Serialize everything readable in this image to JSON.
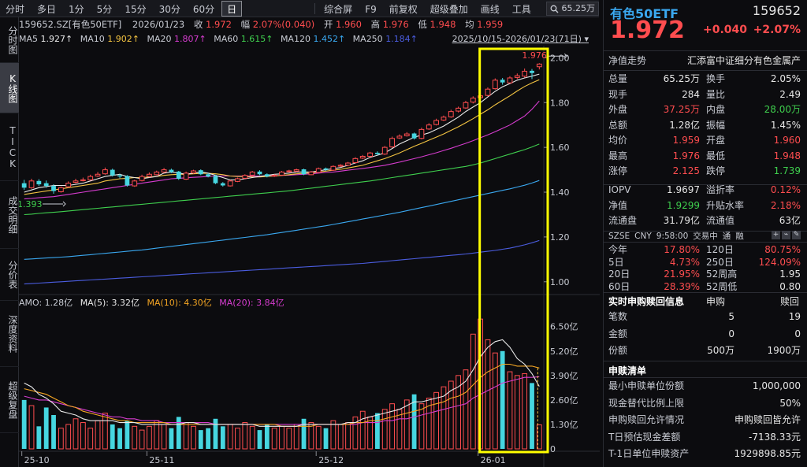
{
  "toolbar": {
    "tabs": [
      "分时",
      "多日",
      "1分",
      "5分",
      "15分",
      "30分",
      "60分",
      "日"
    ],
    "active_tab": "日",
    "tools": [
      "综合屏",
      "F9",
      "前复权",
      "超级叠加",
      "画线",
      "工具"
    ],
    "search_text": "65.25万"
  },
  "sidebar": {
    "items": [
      "分时图",
      "K线图",
      "TICK",
      "成交明细",
      "分价表",
      "深度资料",
      "超级复盘"
    ],
    "active": "K线图"
  },
  "info": {
    "code": "159652.SZ[有色50ETF]",
    "date": "2026/01/23",
    "close_label": "收",
    "close": "1.972",
    "change_label": "幅",
    "change": "2.07%(0.040)",
    "open_label": "开",
    "open": "1.960",
    "high_label": "高",
    "high": "1.976",
    "low_label": "低",
    "low": "1.948",
    "avg_label": "均",
    "avg": "1.959",
    "range": "2025/10/15-2026/01/23(71日)"
  },
  "ma": [
    {
      "name": "MA5",
      "value": "1.927↑",
      "color": "#e8e8e8"
    },
    {
      "name": "MA10",
      "value": "1.902↑",
      "color": "#f5c542"
    },
    {
      "name": "MA20",
      "value": "1.807↑",
      "color": "#d63ccf"
    },
    {
      "name": "MA60",
      "value": "1.615↑",
      "color": "#3fcf4e"
    },
    {
      "name": "MA120",
      "value": "1.452↑",
      "color": "#3aa8f0"
    },
    {
      "name": "MA250",
      "value": "1.184↑",
      "color": "#4b5de0"
    }
  ],
  "amo": {
    "label": "AMO: 1.28亿",
    "ma5": "MA(5): 3.32亿",
    "ma10": "MA(10): 4.30亿",
    "ma20": "MA(20): 3.84亿",
    "ma5_color": "#e8e8e8",
    "ma10_color": "#f5a623",
    "ma20_color": "#d63ccf"
  },
  "chart_data": {
    "type": "candlestick",
    "price_ticks": [
      "2.00",
      "1.80",
      "1.60",
      "1.40",
      "1.20",
      "1.00"
    ],
    "price_tick_values": [
      2.0,
      1.8,
      1.6,
      1.4,
      1.2,
      1.0
    ],
    "ylim": [
      0.95,
      2.04
    ],
    "volume_ticks": [
      "6.50亿",
      "5.20亿",
      "3.90亿",
      "2.60亿",
      "1.30亿",
      "0"
    ],
    "volume_tick_values": [
      6.5,
      5.2,
      3.9,
      2.6,
      1.3,
      0
    ],
    "vol_max": 7.2,
    "x_labels": [
      "25-10",
      "25-11",
      "25-12",
      "26-01"
    ],
    "x_label_index": [
      0,
      17,
      40,
      62
    ],
    "max_marker": "1.976",
    "min_marker": "1.393",
    "closes": [
      1.42,
      1.45,
      1.435,
      1.428,
      1.405,
      1.42,
      1.44,
      1.45,
      1.455,
      1.47,
      1.48,
      1.5,
      1.475,
      1.47,
      1.43,
      1.45,
      1.47,
      1.48,
      1.49,
      1.5,
      1.49,
      1.46,
      1.485,
      1.495,
      1.48,
      1.47,
      1.44,
      1.43,
      1.45,
      1.46,
      1.475,
      1.49,
      1.48,
      1.47,
      1.475,
      1.49,
      1.495,
      1.5,
      1.48,
      1.49,
      1.505,
      1.5,
      1.515,
      1.52,
      1.53,
      1.55,
      1.56,
      1.575,
      1.57,
      1.6,
      1.64,
      1.65,
      1.66,
      1.64,
      1.68,
      1.7,
      1.72,
      1.735,
      1.76,
      1.775,
      1.8,
      1.82,
      1.83,
      1.86,
      1.9,
      1.89,
      1.91,
      1.92,
      1.94,
      1.932,
      1.972
    ],
    "opens": [
      1.44,
      1.42,
      1.45,
      1.44,
      1.428,
      1.402,
      1.424,
      1.444,
      1.452,
      1.455,
      1.472,
      1.482,
      1.5,
      1.475,
      1.472,
      1.428,
      1.452,
      1.47,
      1.478,
      1.49,
      1.5,
      1.492,
      1.458,
      1.486,
      1.498,
      1.48,
      1.472,
      1.44,
      1.428,
      1.448,
      1.462,
      1.476,
      1.492,
      1.48,
      1.472,
      1.476,
      1.492,
      1.494,
      1.502,
      1.478,
      1.488,
      1.506,
      1.498,
      1.516,
      1.52,
      1.532,
      1.552,
      1.56,
      1.576,
      1.57,
      1.602,
      1.642,
      1.652,
      1.662,
      1.64,
      1.682,
      1.702,
      1.722,
      1.736,
      1.762,
      1.776,
      1.802,
      1.822,
      1.832,
      1.862,
      1.902,
      1.888,
      1.912,
      1.918,
      1.942,
      1.96
    ],
    "highs": [
      1.455,
      1.46,
      1.458,
      1.452,
      1.435,
      1.425,
      1.448,
      1.46,
      1.465,
      1.478,
      1.49,
      1.51,
      1.505,
      1.482,
      1.476,
      1.455,
      1.478,
      1.488,
      1.496,
      1.508,
      1.505,
      1.495,
      1.492,
      1.5,
      1.502,
      1.485,
      1.478,
      1.445,
      1.455,
      1.465,
      1.48,
      1.495,
      1.498,
      1.484,
      1.48,
      1.495,
      1.5,
      1.505,
      1.505,
      1.495,
      1.51,
      1.51,
      1.52,
      1.525,
      1.535,
      1.556,
      1.566,
      1.58,
      1.582,
      1.606,
      1.648,
      1.658,
      1.668,
      1.666,
      1.688,
      1.708,
      1.728,
      1.742,
      1.768,
      1.782,
      1.808,
      1.828,
      1.838,
      1.868,
      1.908,
      1.91,
      1.918,
      1.93,
      1.952,
      1.95,
      1.976
    ],
    "lows": [
      1.41,
      1.415,
      1.428,
      1.42,
      1.393,
      1.398,
      1.42,
      1.44,
      1.448,
      1.452,
      1.468,
      1.478,
      1.47,
      1.462,
      1.425,
      1.424,
      1.448,
      1.466,
      1.475,
      1.486,
      1.485,
      1.455,
      1.455,
      1.482,
      1.476,
      1.466,
      1.436,
      1.425,
      1.425,
      1.445,
      1.458,
      1.472,
      1.476,
      1.466,
      1.468,
      1.472,
      1.488,
      1.49,
      1.476,
      1.476,
      1.485,
      1.495,
      1.495,
      1.512,
      1.516,
      1.528,
      1.548,
      1.556,
      1.565,
      1.566,
      1.598,
      1.638,
      1.648,
      1.635,
      1.636,
      1.678,
      1.698,
      1.718,
      1.732,
      1.756,
      1.772,
      1.796,
      1.818,
      1.828,
      1.858,
      1.88,
      1.885,
      1.905,
      1.912,
      1.905,
      1.948
    ],
    "volumes": [
      2.6,
      2.3,
      1.2,
      2.2,
      1.8,
      1.1,
      1.3,
      1.6,
      1.4,
      1.1,
      1.5,
      1.9,
      1.3,
      1.1,
      1.5,
      1.2,
      1.0,
      1.2,
      1.5,
      1.3,
      1.1,
      1.7,
      1.4,
      1.2,
      1.0,
      1.1,
      1.6,
      1.2,
      1.3,
      1.1,
      1.4,
      1.2,
      1.0,
      1.3,
      1.1,
      1.2,
      1.1,
      1.3,
      1.6,
      1.4,
      1.2,
      1.1,
      1.5,
      1.3,
      1.4,
      1.7,
      2.0,
      1.7,
      1.9,
      2.1,
      2.4,
      2.1,
      2.6,
      2.9,
      2.4,
      2.7,
      3.0,
      3.3,
      3.6,
      3.9,
      4.2,
      6.1,
      6.9,
      5.8,
      5.1,
      5.2,
      4.1,
      3.9,
      4.0,
      3.5,
      1.28
    ],
    "ma5": [
      1.4,
      1.41,
      1.42,
      1.425,
      1.43,
      1.43,
      1.43,
      1.435,
      1.44,
      1.45,
      1.46,
      1.47,
      1.475,
      1.48,
      1.47,
      1.465,
      1.46,
      1.465,
      1.47,
      1.485,
      1.49,
      1.485,
      1.48,
      1.485,
      1.49,
      1.485,
      1.475,
      1.465,
      1.455,
      1.455,
      1.46,
      1.465,
      1.47,
      1.475,
      1.48,
      1.482,
      1.485,
      1.49,
      1.49,
      1.49,
      1.495,
      1.5,
      1.505,
      1.51,
      1.52,
      1.53,
      1.54,
      1.555,
      1.565,
      1.575,
      1.595,
      1.615,
      1.63,
      1.645,
      1.655,
      1.665,
      1.68,
      1.695,
      1.715,
      1.735,
      1.76,
      1.78,
      1.8,
      1.825,
      1.85,
      1.87,
      1.885,
      1.9,
      1.91,
      1.918,
      1.927
    ],
    "ma10": [
      1.39,
      1.395,
      1.4,
      1.405,
      1.41,
      1.415,
      1.42,
      1.425,
      1.43,
      1.435,
      1.44,
      1.45,
      1.455,
      1.46,
      1.462,
      1.465,
      1.465,
      1.468,
      1.47,
      1.475,
      1.478,
      1.48,
      1.48,
      1.482,
      1.484,
      1.484,
      1.482,
      1.478,
      1.472,
      1.47,
      1.47,
      1.468,
      1.468,
      1.47,
      1.472,
      1.475,
      1.478,
      1.482,
      1.484,
      1.486,
      1.49,
      1.494,
      1.498,
      1.502,
      1.508,
      1.514,
      1.52,
      1.53,
      1.54,
      1.55,
      1.562,
      1.575,
      1.59,
      1.605,
      1.618,
      1.632,
      1.646,
      1.66,
      1.676,
      1.692,
      1.71,
      1.728,
      1.748,
      1.768,
      1.79,
      1.81,
      1.83,
      1.852,
      1.872,
      1.888,
      1.902
    ],
    "ma20": [
      1.37,
      1.372,
      1.375,
      1.378,
      1.38,
      1.385,
      1.39,
      1.395,
      1.4,
      1.405,
      1.41,
      1.415,
      1.42,
      1.425,
      1.43,
      1.435,
      1.44,
      1.445,
      1.45,
      1.455,
      1.46,
      1.462,
      1.464,
      1.466,
      1.468,
      1.47,
      1.472,
      1.472,
      1.472,
      1.472,
      1.472,
      1.472,
      1.472,
      1.473,
      1.474,
      1.475,
      1.476,
      1.478,
      1.48,
      1.482,
      1.485,
      1.488,
      1.49,
      1.494,
      1.498,
      1.502,
      1.506,
      1.51,
      1.515,
      1.52,
      1.527,
      1.534,
      1.542,
      1.55,
      1.558,
      1.567,
      1.576,
      1.586,
      1.596,
      1.607,
      1.618,
      1.63,
      1.643,
      1.656,
      1.67,
      1.685,
      1.7,
      1.72,
      1.74,
      1.77,
      1.807
    ],
    "ma60": [
      1.3,
      1.302,
      1.305,
      1.308,
      1.31,
      1.313,
      1.316,
      1.319,
      1.322,
      1.325,
      1.328,
      1.331,
      1.334,
      1.337,
      1.34,
      1.343,
      1.346,
      1.349,
      1.352,
      1.355,
      1.358,
      1.361,
      1.364,
      1.367,
      1.37,
      1.373,
      1.376,
      1.379,
      1.382,
      1.385,
      1.388,
      1.391,
      1.394,
      1.397,
      1.4,
      1.403,
      1.406,
      1.41,
      1.414,
      1.418,
      1.422,
      1.426,
      1.43,
      1.434,
      1.438,
      1.442,
      1.446,
      1.45,
      1.455,
      1.46,
      1.465,
      1.47,
      1.475,
      1.48,
      1.485,
      1.49,
      1.495,
      1.5,
      1.505,
      1.51,
      1.515,
      1.522,
      1.53,
      1.54,
      1.55,
      1.56,
      1.57,
      1.58,
      1.59,
      1.602,
      1.615
    ],
    "ma120": [
      1.1,
      1.102,
      1.104,
      1.106,
      1.108,
      1.11,
      1.112,
      1.115,
      1.118,
      1.121,
      1.124,
      1.127,
      1.13,
      1.133,
      1.136,
      1.139,
      1.142,
      1.146,
      1.15,
      1.154,
      1.158,
      1.162,
      1.166,
      1.17,
      1.174,
      1.178,
      1.182,
      1.186,
      1.19,
      1.194,
      1.198,
      1.202,
      1.206,
      1.21,
      1.215,
      1.22,
      1.225,
      1.23,
      1.235,
      1.24,
      1.245,
      1.25,
      1.256,
      1.262,
      1.268,
      1.274,
      1.28,
      1.286,
      1.292,
      1.298,
      1.304,
      1.31,
      1.317,
      1.324,
      1.331,
      1.338,
      1.345,
      1.352,
      1.359,
      1.366,
      1.373,
      1.38,
      1.387,
      1.394,
      1.401,
      1.408,
      1.415,
      1.423,
      1.431,
      1.441,
      1.452
    ],
    "ma250": [
      0.99,
      0.992,
      0.994,
      0.996,
      0.998,
      1.0,
      1.002,
      1.004,
      1.006,
      1.008,
      1.01,
      1.012,
      1.014,
      1.016,
      1.018,
      1.02,
      1.022,
      1.024,
      1.026,
      1.028,
      1.03,
      1.032,
      1.034,
      1.036,
      1.038,
      1.04,
      1.042,
      1.044,
      1.046,
      1.048,
      1.05,
      1.052,
      1.054,
      1.056,
      1.058,
      1.06,
      1.062,
      1.064,
      1.066,
      1.068,
      1.07,
      1.072,
      1.074,
      1.076,
      1.078,
      1.08,
      1.082,
      1.085,
      1.088,
      1.091,
      1.094,
      1.097,
      1.1,
      1.103,
      1.106,
      1.109,
      1.112,
      1.115,
      1.118,
      1.121,
      1.124,
      1.128,
      1.132,
      1.136,
      1.14,
      1.145,
      1.15,
      1.157,
      1.165,
      1.174,
      1.184
    ],
    "vol_ma5": [
      3.5,
      3.3,
      2.9,
      2.7,
      2.4,
      2.0,
      1.9,
      1.8,
      1.6,
      1.5,
      1.5,
      1.5,
      1.5,
      1.4,
      1.4,
      1.4,
      1.3,
      1.3,
      1.3,
      1.3,
      1.3,
      1.3,
      1.4,
      1.4,
      1.3,
      1.3,
      1.3,
      1.3,
      1.3,
      1.3,
      1.3,
      1.3,
      1.2,
      1.2,
      1.2,
      1.2,
      1.2,
      1.2,
      1.3,
      1.3,
      1.3,
      1.3,
      1.3,
      1.3,
      1.4,
      1.4,
      1.6,
      1.7,
      1.8,
      1.9,
      2.0,
      2.1,
      2.3,
      2.5,
      2.5,
      2.6,
      2.7,
      2.8,
      3.1,
      3.3,
      3.6,
      4.2,
      4.9,
      5.4,
      5.7,
      5.8,
      5.4,
      4.8,
      4.5,
      4.0,
      3.32
    ],
    "vol_ma10": [
      3.2,
      3.1,
      3.0,
      2.9,
      2.7,
      2.5,
      2.3,
      2.2,
      2.0,
      1.9,
      1.8,
      1.7,
      1.6,
      1.5,
      1.5,
      1.4,
      1.4,
      1.4,
      1.4,
      1.4,
      1.3,
      1.3,
      1.3,
      1.3,
      1.3,
      1.3,
      1.3,
      1.3,
      1.3,
      1.3,
      1.3,
      1.3,
      1.3,
      1.3,
      1.3,
      1.2,
      1.2,
      1.2,
      1.2,
      1.2,
      1.3,
      1.3,
      1.3,
      1.3,
      1.3,
      1.4,
      1.4,
      1.5,
      1.5,
      1.6,
      1.7,
      1.8,
      1.9,
      2.0,
      2.1,
      2.3,
      2.4,
      2.5,
      2.7,
      2.8,
      3.0,
      3.4,
      3.8,
      4.1,
      4.3,
      4.5,
      4.5,
      4.4,
      4.4,
      4.4,
      4.3
    ],
    "vol_ma20": [
      2.8,
      2.7,
      2.6,
      2.6,
      2.5,
      2.4,
      2.3,
      2.2,
      2.1,
      2.0,
      1.9,
      1.8,
      1.7,
      1.7,
      1.6,
      1.6,
      1.5,
      1.5,
      1.5,
      1.4,
      1.4,
      1.4,
      1.4,
      1.4,
      1.4,
      1.4,
      1.3,
      1.3,
      1.3,
      1.3,
      1.3,
      1.3,
      1.3,
      1.3,
      1.3,
      1.3,
      1.3,
      1.3,
      1.3,
      1.3,
      1.3,
      1.3,
      1.3,
      1.3,
      1.3,
      1.3,
      1.4,
      1.4,
      1.4,
      1.5,
      1.5,
      1.6,
      1.6,
      1.7,
      1.8,
      1.9,
      2.0,
      2.1,
      2.2,
      2.3,
      2.4,
      2.7,
      2.9,
      3.1,
      3.3,
      3.5,
      3.6,
      3.7,
      3.8,
      3.8,
      3.84
    ]
  },
  "quote": {
    "name": "有色50ETF",
    "code": "159652",
    "price": "1.972",
    "change": "+0.040",
    "change_pct": "+2.07%",
    "nav_label": "净值走势",
    "nav_name": "汇添富中证细分有色金属产",
    "grid1": [
      [
        "总量",
        "65.25万",
        "white",
        "换手",
        "2.05%",
        "white"
      ],
      [
        "现手",
        "284",
        "white",
        "量比",
        "2.49",
        "white"
      ],
      [
        "外盘",
        "37.25万",
        "up",
        "内盘",
        "28.00万",
        "down"
      ],
      [
        "总额",
        "1.28亿",
        "white",
        "振幅",
        "1.45%",
        "white"
      ],
      [
        "均价",
        "1.959",
        "up",
        "开盘",
        "1.960",
        "up"
      ],
      [
        "最高",
        "1.976",
        "up",
        "最低",
        "1.948",
        "up"
      ],
      [
        "涨停",
        "2.125",
        "up",
        "跌停",
        "1.739",
        "down"
      ]
    ],
    "grid2": [
      [
        "IOPV",
        "1.9697",
        "white",
        "溢折率",
        "0.12%",
        "up"
      ],
      [
        "净值",
        "1.9299",
        "down",
        "升贴水率",
        "2.18%",
        "up"
      ],
      [
        "流通盘",
        "31.79亿",
        "white",
        "流通值",
        "63亿",
        "white"
      ]
    ],
    "meta": {
      "market": "SZSE",
      "currency": "CNY",
      "time": "9:58:00",
      "status1": "交易中",
      "status2": "通",
      "status3": "融"
    },
    "periods": [
      [
        "今年",
        "17.80%",
        "120日",
        "80.75%"
      ],
      [
        "5日",
        "4.73%",
        "250日",
        "124.09%"
      ],
      [
        "20日",
        "21.95%",
        "52周高",
        "1.95"
      ],
      [
        "60日",
        "28.39%",
        "52周低",
        "0.80"
      ]
    ],
    "subscription": {
      "title": "实时申购赎回信息",
      "col1": "申购",
      "col2": "赎回",
      "rows": [
        [
          "笔数",
          "5",
          "19"
        ],
        [
          "金额",
          "0",
          "0"
        ],
        [
          "份额",
          "500万",
          "1900万"
        ]
      ]
    },
    "list": {
      "title": "申赎清单",
      "rows": [
        [
          "最小申赎单位份额",
          "1,000,000"
        ],
        [
          "现金替代比例上限",
          "50%"
        ],
        [
          "申购赎回允许情况",
          "申购赎回皆允许"
        ],
        [
          "T日预估现金差额",
          "-7138.33元"
        ],
        [
          "T-1日单位申赎资产",
          "1929898.85元"
        ]
      ]
    }
  }
}
